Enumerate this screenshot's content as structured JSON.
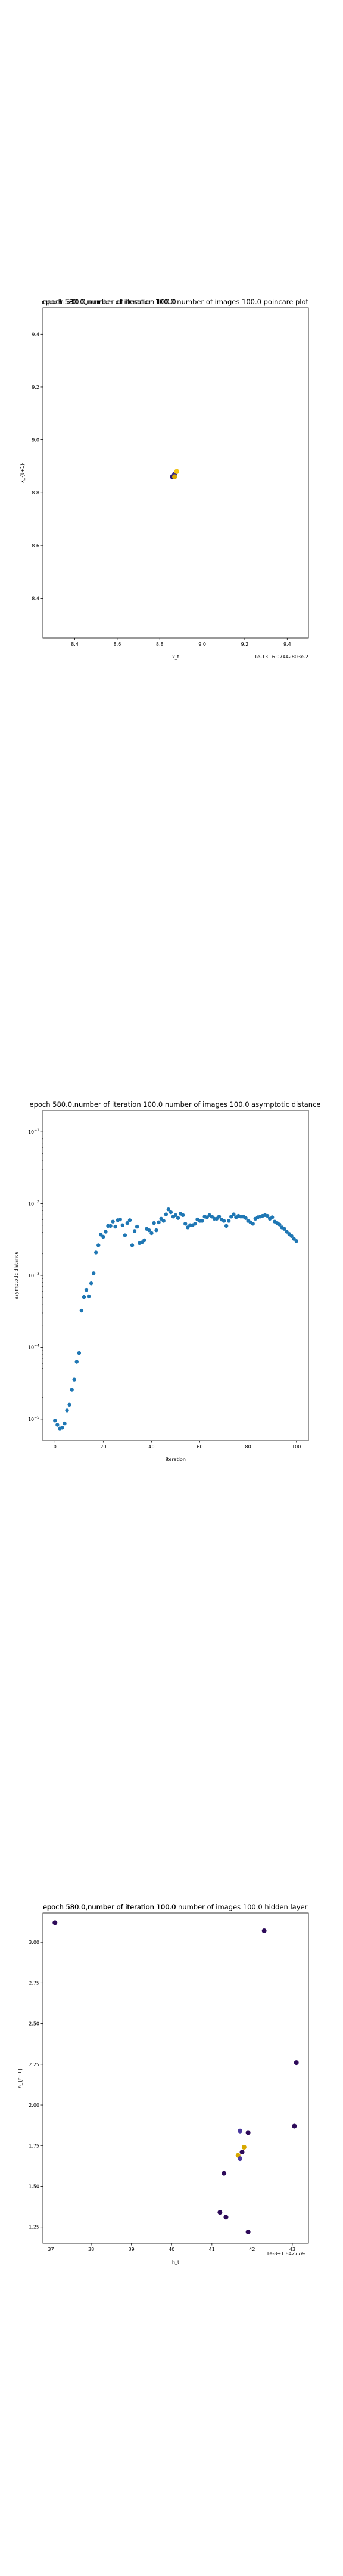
{
  "colors": {
    "scatter_blue": "#1f77b4",
    "poincare_points": [
      "#2c1a6e",
      "#3b2a8a",
      "#8a6d2a",
      "#d8a800",
      "#f3c613"
    ],
    "hidden_points_dark": "#2d0a59",
    "hidden_points_mid": "#4a3aa0",
    "hidden_points_gold": "#d8a800"
  },
  "chart_data": [
    {
      "type": "scatter",
      "title": "epoch 580.0,number of iteration 100.0  number of images 100.0 poincare plot",
      "overlay_text": "epoch 580.0,number of iteration 100.0",
      "xlabel": "x_t",
      "ylabel": "x_{t+1}",
      "x_offset_text": "1e-13+6.07442803e-2",
      "x_ticks": [
        "8.4",
        "8.6",
        "8.8",
        "9.0",
        "9.2",
        "9.4"
      ],
      "y_ticks": [
        "8.4",
        "8.6",
        "8.8",
        "9.0",
        "9.2",
        "9.4"
      ],
      "xlim": [
        8.25,
        9.5
      ],
      "ylim": [
        8.25,
        9.5
      ],
      "points": [
        {
          "x": 8.86,
          "y": 8.86,
          "color": "#2c1a6e"
        },
        {
          "x": 8.87,
          "y": 8.87,
          "color": "#3b2a8a"
        },
        {
          "x": 8.88,
          "y": 8.88,
          "color": "#8a6d2a"
        },
        {
          "x": 8.87,
          "y": 8.86,
          "color": "#d8a800"
        },
        {
          "x": 8.88,
          "y": 8.88,
          "color": "#f3c613"
        }
      ]
    },
    {
      "type": "scatter",
      "title": "epoch 580.0,number of iteration 100.0  number of images 100.0 asymptotic distance",
      "xlabel": "iteration",
      "ylabel": "asymptotic distance",
      "y_scale": "log",
      "x_ticks": [
        "0",
        "20",
        "40",
        "60",
        "80",
        "100"
      ],
      "y_ticks": [
        "10^{-5}",
        "10^{-4}",
        "10^{-3}",
        "10^{-2}",
        "10^{-1}"
      ],
      "xlim": [
        -5,
        105
      ],
      "ylim_log10": [
        -5.3,
        -0.7
      ],
      "series": [
        {
          "x": [
            0,
            1,
            2,
            3,
            4,
            5,
            6,
            7,
            8,
            9,
            10,
            11,
            12,
            13,
            14,
            15,
            16,
            17,
            18,
            19,
            20,
            21,
            22,
            23,
            24,
            25,
            26,
            27,
            28,
            29,
            30,
            31,
            32,
            33,
            34,
            35,
            36,
            37,
            38,
            39,
            40,
            41,
            42,
            43,
            44,
            45,
            46,
            47,
            48,
            49,
            50,
            51,
            52,
            53,
            54,
            55,
            56,
            57,
            58,
            59,
            60,
            61,
            62,
            63,
            64,
            65,
            66,
            67,
            68,
            69,
            70,
            71,
            72,
            73,
            74,
            75,
            76,
            77,
            78,
            79,
            80,
            81,
            82,
            83,
            84,
            85,
            86,
            87,
            88,
            89,
            90,
            91,
            92,
            93,
            94,
            95,
            96,
            97,
            98,
            99,
            100
          ],
          "log10_y": [
            -5.02,
            -5.08,
            -5.13,
            -5.12,
            -5.06,
            -4.88,
            -4.8,
            -4.59,
            -4.45,
            -4.2,
            -4.08,
            -3.49,
            -3.3,
            -3.2,
            -3.29,
            -3.11,
            -2.97,
            -2.68,
            -2.58,
            -2.43,
            -2.46,
            -2.39,
            -2.31,
            -2.31,
            -2.25,
            -2.32,
            -2.23,
            -2.22,
            -2.3,
            -2.44,
            -2.27,
            -2.23,
            -2.58,
            -2.38,
            -2.32,
            -2.55,
            -2.54,
            -2.51,
            -2.35,
            -2.37,
            -2.41,
            -2.27,
            -2.37,
            -2.26,
            -2.21,
            -2.24,
            -2.15,
            -2.08,
            -2.12,
            -2.18,
            -2.16,
            -2.2,
            -2.14,
            -2.16,
            -2.28,
            -2.33,
            -2.3,
            -2.3,
            -2.28,
            -2.22,
            -2.24,
            -2.24,
            -2.18,
            -2.19,
            -2.16,
            -2.18,
            -2.21,
            -2.21,
            -2.18,
            -2.22,
            -2.24,
            -2.31,
            -2.24,
            -2.18,
            -2.15,
            -2.19,
            -2.17,
            -2.18,
            -2.18,
            -2.2,
            -2.24,
            -2.26,
            -2.28,
            -2.21,
            -2.19,
            -2.18,
            -2.17,
            -2.16,
            -2.17,
            -2.21,
            -2.19,
            -2.25,
            -2.27,
            -2.29,
            -2.33,
            -2.35,
            -2.39,
            -2.42,
            -2.45,
            -2.49,
            -2.52
          ]
        }
      ]
    },
    {
      "type": "scatter",
      "title": "epoch 580.0,number of iteration 100.0  number of images 100.0 hidden layer",
      "overlay_text": "epoch 580.0,number of iteration 100.0",
      "xlabel": "h_t",
      "ylabel": "h_{t+1}",
      "x_offset_text": "1e-8+1.84277e-1",
      "x_ticks": [
        "37",
        "38",
        "39",
        "40",
        "41",
        "42",
        "43"
      ],
      "y_ticks": [
        "1.25",
        "1.50",
        "1.75",
        "2.00",
        "2.25",
        "2.50",
        "2.75",
        "3.00"
      ],
      "xlim": [
        36.8,
        43.4
      ],
      "ylim": [
        1.15,
        3.18
      ],
      "points": [
        {
          "x": 37.1,
          "y": 3.12,
          "color": "#2d0a59"
        },
        {
          "x": 42.3,
          "y": 3.07,
          "color": "#2d0a59"
        },
        {
          "x": 43.1,
          "y": 2.26,
          "color": "#2d0a59"
        },
        {
          "x": 43.05,
          "y": 1.87,
          "color": "#2d0a59"
        },
        {
          "x": 41.7,
          "y": 1.84,
          "color": "#4a3aa0"
        },
        {
          "x": 41.9,
          "y": 1.83,
          "color": "#2d0a59"
        },
        {
          "x": 41.8,
          "y": 1.74,
          "color": "#d8a800"
        },
        {
          "x": 41.75,
          "y": 1.71,
          "color": "#2d0a59"
        },
        {
          "x": 41.65,
          "y": 1.69,
          "color": "#d8a800"
        },
        {
          "x": 41.7,
          "y": 1.67,
          "color": "#4a3aa0"
        },
        {
          "x": 41.3,
          "y": 1.58,
          "color": "#2d0a59"
        },
        {
          "x": 41.2,
          "y": 1.34,
          "color": "#2d0a59"
        },
        {
          "x": 41.35,
          "y": 1.31,
          "color": "#2d0a59"
        },
        {
          "x": 41.9,
          "y": 1.22,
          "color": "#2d0a59"
        }
      ]
    }
  ]
}
